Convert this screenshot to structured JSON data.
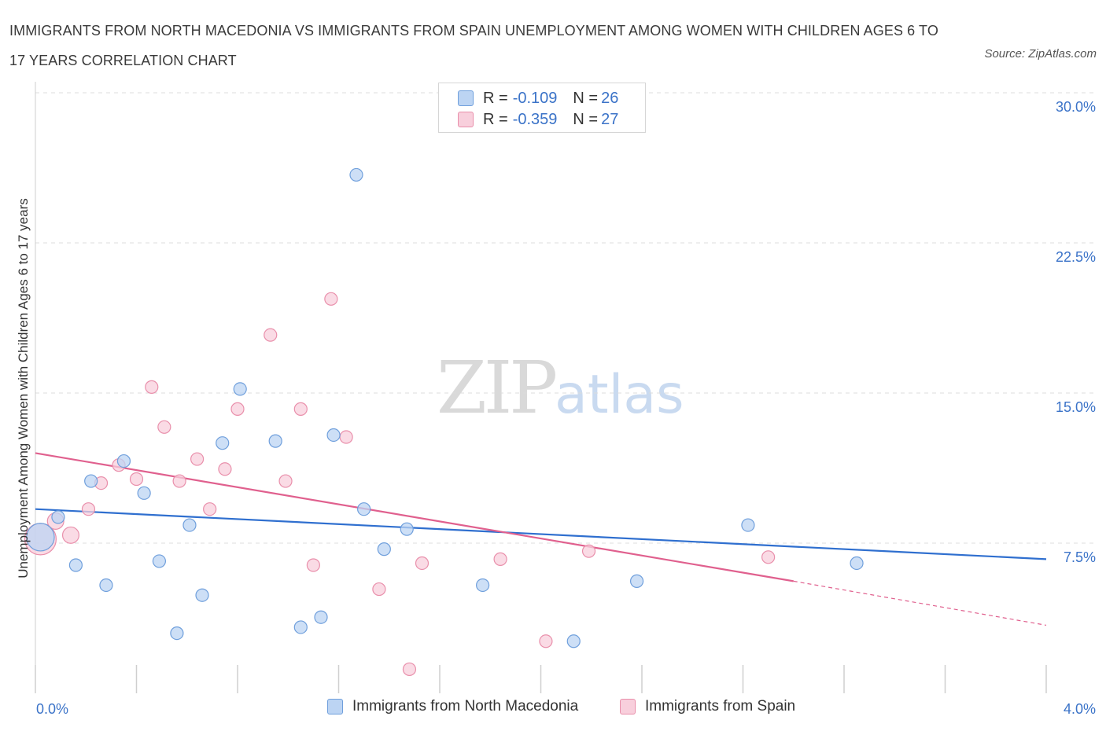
{
  "title": "IMMIGRANTS FROM NORTH MACEDONIA VS IMMIGRANTS FROM SPAIN UNEMPLOYMENT AMONG WOMEN WITH CHILDREN AGES 6 TO 17 YEARS CORRELATION CHART",
  "source": "Source: ZipAtlas.com",
  "watermark": {
    "zip": "ZIP",
    "atlas": "atlas"
  },
  "legend_top": [
    {
      "r_label": "R = ",
      "r_value": "-0.109",
      "n_label": "N = ",
      "n_value": "26"
    },
    {
      "r_label": "R = ",
      "r_value": "-0.359",
      "n_label": "N = ",
      "n_value": "27"
    }
  ],
  "colors": {
    "blue_fill": "#bcd4f3",
    "blue_stroke": "#6f9fdc",
    "blue_line": "#2f6fcf",
    "pink_fill": "#f8cfdc",
    "pink_stroke": "#e98fab",
    "pink_line": "#e0608e",
    "grid": "#dcdcdc",
    "axis_text": "#3b73c8"
  },
  "chart_data": {
    "type": "scatter",
    "title": "IMMIGRANTS FROM NORTH MACEDONIA VS IMMIGRANTS FROM SPAIN UNEMPLOYMENT AMONG WOMEN WITH CHILDREN AGES 6 TO 17 YEARS CORRELATION CHART",
    "xlabel": "",
    "ylabel": "Unemployment Among Women with Children Ages 6 to 17 years",
    "xlim": [
      0,
      4.0
    ],
    "ylim": [
      0,
      30.0
    ],
    "x_tick_labels": [
      "0.0%",
      "4.0%"
    ],
    "y_ticks": [
      7.5,
      15.0,
      22.5,
      30.0
    ],
    "y_tick_labels": [
      "7.5%",
      "15.0%",
      "22.5%",
      "30.0%"
    ],
    "grid": true,
    "legend_position": "bottom",
    "series": [
      {
        "name": "Immigrants from North Macedonia",
        "color": "blue",
        "R": -0.109,
        "N": 26,
        "trend": {
          "x0": 0.0,
          "y0": 9.2,
          "x1": 4.0,
          "y1": 6.7
        },
        "points": [
          [
            0.02,
            7.8,
            2.2
          ],
          [
            0.09,
            8.8,
            1
          ],
          [
            0.16,
            6.4,
            1
          ],
          [
            0.22,
            10.6,
            1
          ],
          [
            0.28,
            5.4,
            1
          ],
          [
            0.35,
            11.6,
            1
          ],
          [
            0.43,
            10.0,
            1
          ],
          [
            0.49,
            6.6,
            1
          ],
          [
            0.56,
            3.0,
            1
          ],
          [
            0.61,
            8.4,
            1
          ],
          [
            0.66,
            4.9,
            1
          ],
          [
            0.74,
            12.5,
            1
          ],
          [
            0.81,
            15.2,
            1
          ],
          [
            0.95,
            12.6,
            1
          ],
          [
            1.05,
            3.3,
            1
          ],
          [
            1.13,
            3.8,
            1
          ],
          [
            1.18,
            12.9,
            1
          ],
          [
            1.27,
            25.9,
            1
          ],
          [
            1.3,
            9.2,
            1
          ],
          [
            1.38,
            7.2,
            1
          ],
          [
            1.47,
            8.2,
            1
          ],
          [
            1.77,
            5.4,
            1
          ],
          [
            2.13,
            2.6,
            1
          ],
          [
            2.38,
            5.6,
            1
          ],
          [
            2.82,
            8.4,
            1
          ],
          [
            3.25,
            6.5,
            1
          ]
        ]
      },
      {
        "name": "Immigrants from Spain",
        "color": "pink",
        "R": -0.359,
        "N": 27,
        "trend": {
          "x0": 0.0,
          "y0": 12.0,
          "x1": 3.0,
          "y1": 5.6,
          "dashed_to_x": 4.0,
          "dashed_to_y": 3.4
        },
        "points": [
          [
            0.02,
            7.7,
            2.5
          ],
          [
            0.08,
            8.6,
            1.3
          ],
          [
            0.14,
            7.9,
            1.3
          ],
          [
            0.21,
            9.2,
            1
          ],
          [
            0.26,
            10.5,
            1
          ],
          [
            0.33,
            11.4,
            1
          ],
          [
            0.4,
            10.7,
            1
          ],
          [
            0.46,
            15.3,
            1
          ],
          [
            0.51,
            13.3,
            1
          ],
          [
            0.57,
            10.6,
            1
          ],
          [
            0.64,
            11.7,
            1
          ],
          [
            0.69,
            9.2,
            1
          ],
          [
            0.75,
            11.2,
            1
          ],
          [
            0.8,
            14.2,
            1
          ],
          [
            0.93,
            17.9,
            1
          ],
          [
            0.99,
            10.6,
            1
          ],
          [
            1.05,
            14.2,
            1
          ],
          [
            1.1,
            6.4,
            1
          ],
          [
            1.17,
            19.7,
            1
          ],
          [
            1.23,
            12.8,
            1
          ],
          [
            1.36,
            5.2,
            1
          ],
          [
            1.48,
            1.2,
            1
          ],
          [
            1.53,
            6.5,
            1
          ],
          [
            1.84,
            6.7,
            1
          ],
          [
            2.02,
            2.6,
            1
          ],
          [
            2.19,
            7.1,
            1
          ],
          [
            2.9,
            6.8,
            1
          ]
        ]
      }
    ]
  }
}
